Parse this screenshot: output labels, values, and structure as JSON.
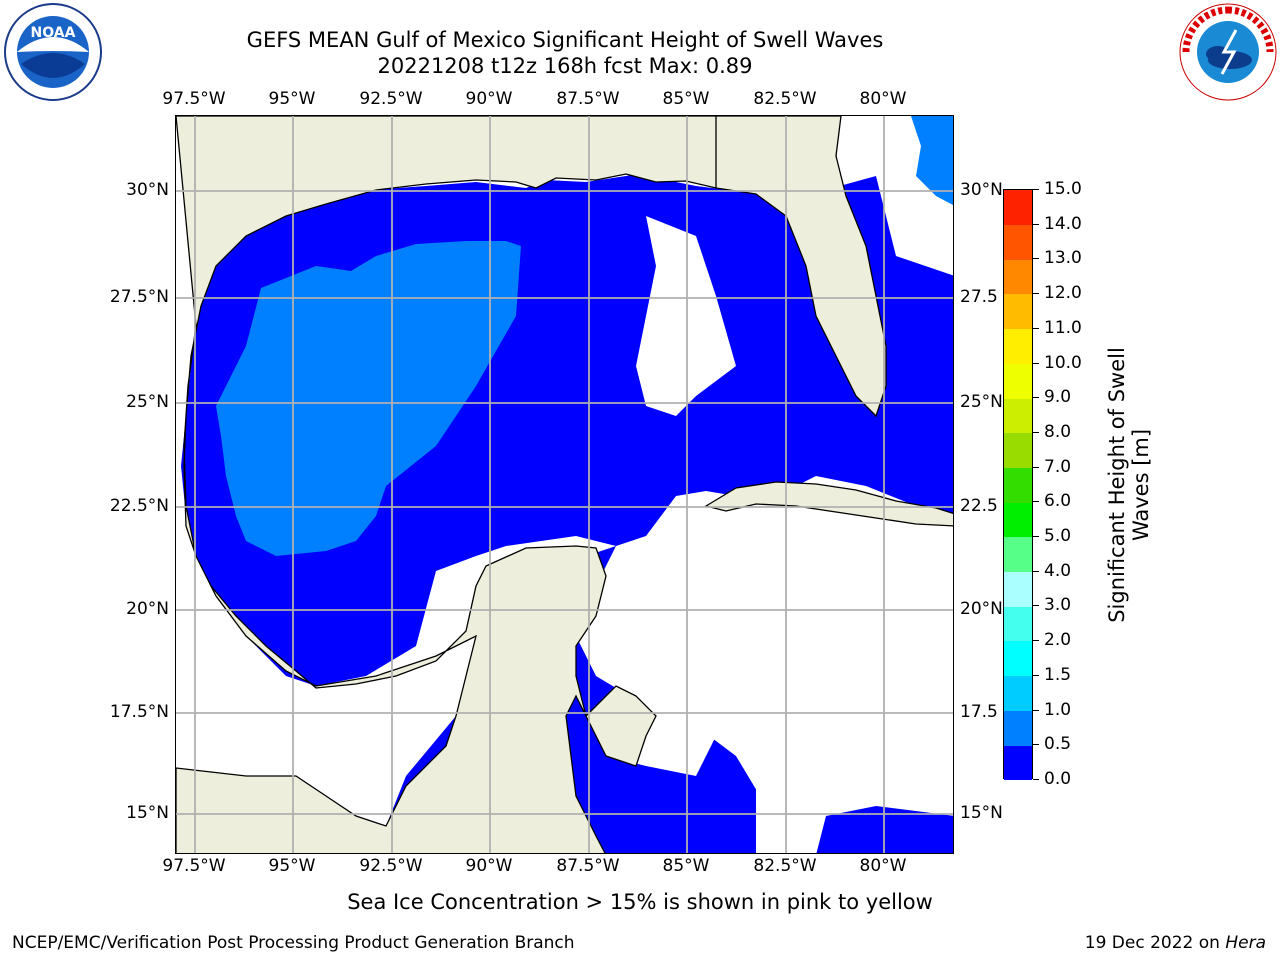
{
  "title": {
    "line1": "GEFS MEAN Gulf of Mexico Significant Height of Swell Waves",
    "line2": "20221208 t12z 168h fcst   Max: 0.89"
  },
  "axes": {
    "lon_labels": [
      "97.5°W",
      "95°W",
      "92.5°W",
      "90°W",
      "87.5°W",
      "85°W",
      "82.5°W",
      "80°W"
    ],
    "lat_labels_left": [
      "30°N",
      "27.5°N",
      "25°N",
      "22.5°N",
      "20°N",
      "17.5°N",
      "15°N"
    ],
    "lat_labels_right": [
      "30°N",
      "27.5",
      "25°N",
      "22.5",
      "20°N",
      "17.5",
      "15°N"
    ]
  },
  "colorbar": {
    "title": "Significant Height of Swell Waves [m]",
    "title_line1": "Significant Height of Swell",
    "title_line2": "Waves [m]",
    "tick_labels": [
      "0.0",
      "0.5",
      "1.0",
      "1.5",
      "2.0",
      "3.0",
      "4.0",
      "5.0",
      "6.0",
      "7.0",
      "8.0",
      "9.0",
      "10.0",
      "11.0",
      "12.0",
      "13.0",
      "14.0",
      "15.0"
    ],
    "colors": [
      "#0000ff",
      "#0080ff",
      "#00ccff",
      "#00ffff",
      "#44ffee",
      "#aaffff",
      "#55ff88",
      "#00ee00",
      "#33dd00",
      "#99dd00",
      "#ccee00",
      "#eeff00",
      "#ffee00",
      "#ffbb00",
      "#ff8800",
      "#ff5500",
      "#ff2200"
    ]
  },
  "map": {
    "lon_range": [
      -98.0,
      -78.2
    ],
    "lat_range": [
      14.0,
      31.8
    ],
    "land_color": "#eeeedc",
    "no_data_color": "#ffffff",
    "max_value": 0.89
  },
  "notes": {
    "sea_ice": "Sea Ice Concentration > 15% is shown in pink to yellow"
  },
  "footer": {
    "left": "NCEP/EMC/Verification Post Processing Product Generation Branch",
    "right_date": "19 Dec 2022 on",
    "right_machine": "Hera"
  },
  "logos": {
    "left": "NOAA",
    "right": "NATIONAL WEATHER SERVICE"
  }
}
